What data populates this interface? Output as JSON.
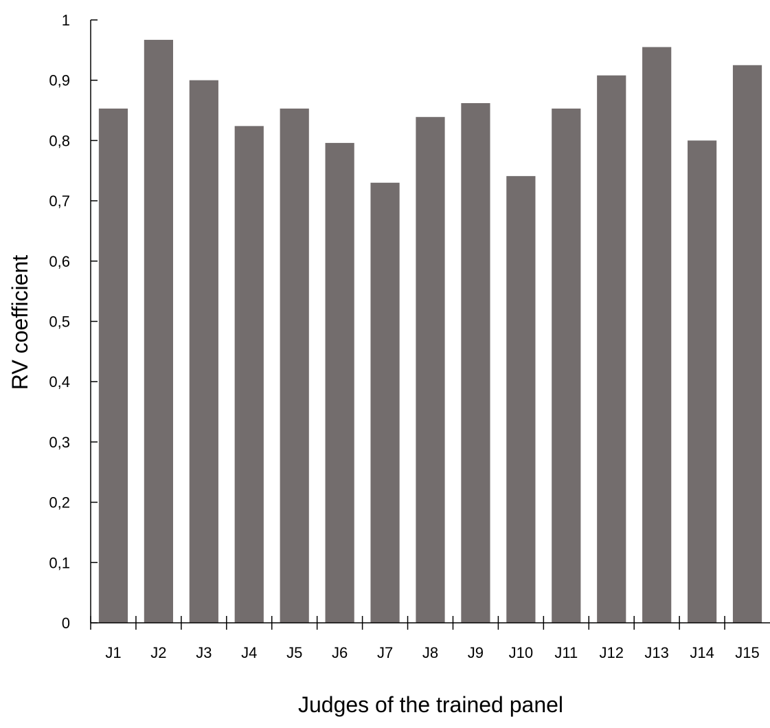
{
  "chart_data": {
    "type": "bar",
    "title": "",
    "xlabel": "Judges of the trained panel",
    "ylabel": "RV coefficient",
    "categories": [
      "J1",
      "J2",
      "J3",
      "J4",
      "J5",
      "J6",
      "J7",
      "J8",
      "J9",
      "J10",
      "J11",
      "J12",
      "J13",
      "J14",
      "J15"
    ],
    "values": [
      0.853,
      0.967,
      0.9,
      0.824,
      0.853,
      0.796,
      0.73,
      0.839,
      0.862,
      0.741,
      0.853,
      0.908,
      0.955,
      0.8,
      0.925
    ],
    "ylim": [
      0,
      1
    ],
    "yticks": [
      "0",
      "0,1",
      "0,2",
      "0,3",
      "0,4",
      "0,5",
      "0,6",
      "0,7",
      "0,8",
      "0,9",
      "1"
    ],
    "ytick_values": [
      0,
      0.1,
      0.2,
      0.3,
      0.4,
      0.5,
      0.6,
      0.7,
      0.8,
      0.9,
      1
    ],
    "grid": false,
    "legend": "none",
    "bar_color": "#736d6d",
    "axis_color": "#000000"
  }
}
